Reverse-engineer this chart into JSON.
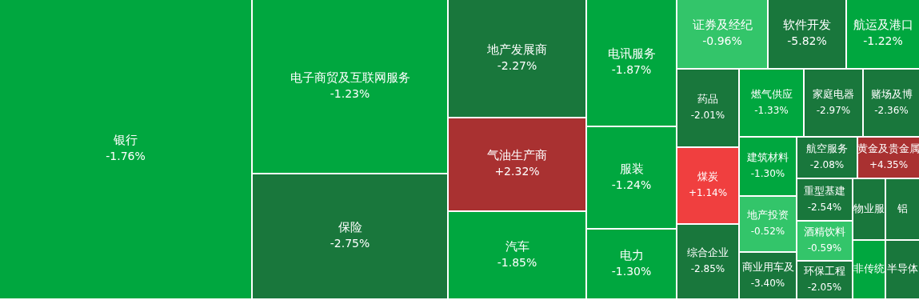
{
  "chart_data": {
    "type": "other",
    "categories": [
      "银行",
      "电子商贸及互联网服务",
      "保险",
      "地产发展商",
      "气油生产商",
      "汽车",
      "电讯服务",
      "服装",
      "电力",
      "证券及经纪",
      "软件开发",
      "航运及港口",
      "药品",
      "煤炭",
      "综合企业",
      "燃气供应",
      "家庭电器",
      "赌场及博",
      "建筑材料",
      "地产投资",
      "商业用车及",
      "航空服务",
      "黄金及贵金属",
      "重型基建",
      "酒精饮料",
      "环保工程",
      "物业服",
      "铝",
      "非传统",
      "半导体"
    ],
    "values": [
      -1.76,
      -1.23,
      -2.75,
      -2.27,
      2.32,
      -1.85,
      -1.87,
      -1.24,
      -1.3,
      -0.96,
      -5.82,
      -1.22,
      -2.01,
      1.14,
      -2.85,
      -1.33,
      -2.97,
      -2.36,
      -1.3,
      -0.52,
      -3.4,
      -2.08,
      4.35,
      -2.54,
      -0.59,
      -2.05,
      null,
      null,
      null,
      null
    ],
    "value_labels": [
      "-1.76%",
      "-1.23%",
      "-2.75%",
      "-2.27%",
      "+2.32%",
      "-1.85%",
      "-1.87%",
      "-1.24%",
      "-1.30%",
      "-0.96%",
      "-5.82%",
      "-1.22%",
      "-2.01%",
      "+1.14%",
      "-2.85%",
      "-1.33%",
      "-2.97%",
      "-2.36%",
      "-1.30%",
      "-0.52%",
      "-3.40%",
      "-2.08%",
      "+4.35%",
      "-2.54%",
      "-0.59%",
      "-2.05%",
      null,
      null,
      null,
      null
    ],
    "colors": [
      null,
      null,
      null,
      null,
      null,
      null,
      null,
      null,
      null,
      null,
      null,
      null,
      null,
      null,
      null,
      null,
      null,
      null,
      null,
      null,
      null,
      null,
      null,
      null,
      null,
      null,
      "#19773c",
      "#19773c",
      "#00a73f",
      "#19773c"
    ]
  }
}
